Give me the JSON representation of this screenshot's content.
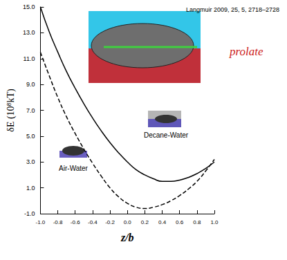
{
  "chart_data": {
    "type": "line",
    "title": "Langmuir 2009, 25, 5, 2718–2728",
    "x_label": "z/b",
    "y_label": "δE (10⁸kT)",
    "x": [
      -1.0,
      -0.9,
      -0.8,
      -0.7,
      -0.6,
      -0.5,
      -0.4,
      -0.3,
      -0.2,
      -0.1,
      0.0,
      0.1,
      0.2,
      0.3,
      0.4,
      0.5,
      0.6,
      0.7,
      0.8,
      0.9,
      1.0
    ],
    "series": [
      {
        "color": "#000000",
        "line_style": "solid",
        "values": [
          15.0,
          13.1,
          11.5,
          10.0,
          8.7,
          7.5,
          6.4,
          5.4,
          4.5,
          3.7,
          3.0,
          2.4,
          2.0,
          1.7,
          1.5,
          1.5,
          1.6,
          1.8,
          2.1,
          2.5,
          3.0
        ]
      },
      {
        "color": "#000000",
        "line_style": "dashed",
        "values": [
          11.5,
          9.7,
          8.0,
          6.5,
          5.2,
          4.0,
          2.9,
          1.9,
          1.0,
          0.3,
          -0.2,
          -0.5,
          -0.6,
          -0.5,
          -0.3,
          0.0,
          0.4,
          0.9,
          1.5,
          2.3,
          3.2
        ]
      }
    ],
    "xlim": [
      -1.0,
      1.0
    ],
    "xticks": [
      {
        "value": -1.0,
        "label": "-1.0"
      },
      {
        "value": -0.8,
        "label": "-0.8"
      },
      {
        "value": -0.6,
        "label": "-0.6"
      },
      {
        "value": -0.4,
        "label": "-0.4"
      },
      {
        "value": -0.2,
        "label": "-0.2"
      },
      {
        "value": 0.0,
        "label": "0.0"
      },
      {
        "value": 0.2,
        "label": "0.2"
      },
      {
        "value": 0.4,
        "label": "0.4"
      },
      {
        "value": 0.6,
        "label": "0.6"
      },
      {
        "value": 0.8,
        "label": "0.8"
      },
      {
        "value": 1.0,
        "label": "1.0"
      }
    ],
    "ylim": [
      -1.0,
      15.0
    ],
    "yticks": [
      {
        "value": -1.0,
        "label": "-1.0"
      },
      {
        "value": 1.0,
        "label": "1.0"
      },
      {
        "value": 3.0,
        "label": "3.0"
      },
      {
        "value": 5.0,
        "label": "5.0"
      },
      {
        "value": 7.0,
        "label": "7.0"
      },
      {
        "value": 9.0,
        "label": "9.0"
      },
      {
        "value": 11.0,
        "label": "11.0"
      },
      {
        "value": 13.0,
        "label": "13.0"
      },
      {
        "value": 15.0,
        "label": "15.0"
      }
    ],
    "grid": false,
    "annotations": [
      "Air-Water",
      "Decane-Water",
      "prolate"
    ]
  }
}
